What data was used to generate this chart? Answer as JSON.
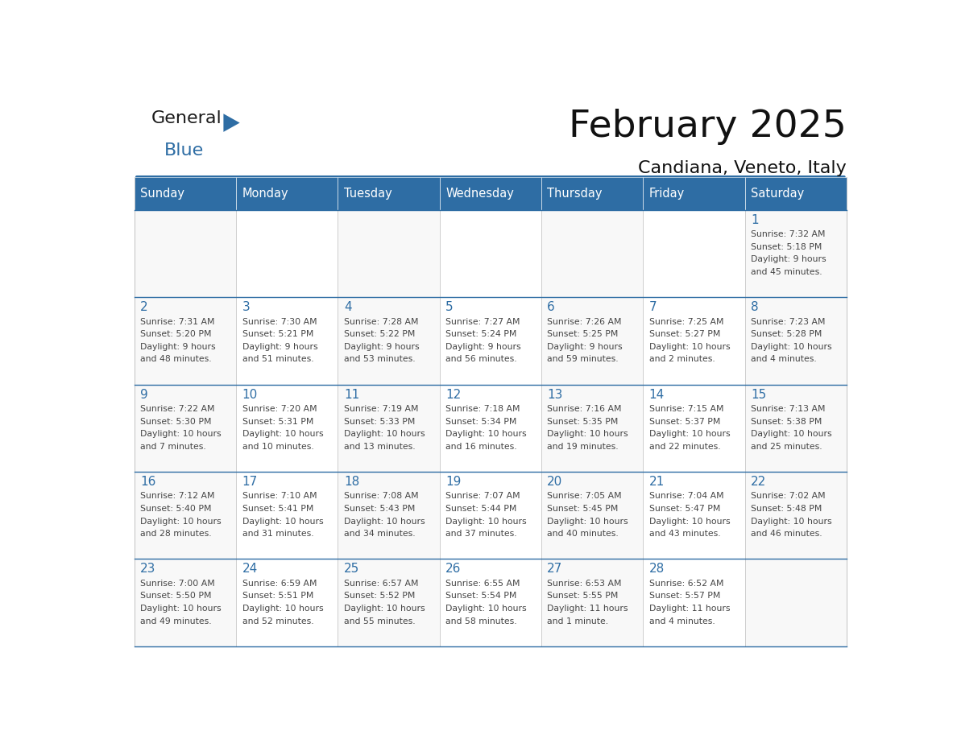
{
  "title": "February 2025",
  "subtitle": "Candiana, Veneto, Italy",
  "header_color": "#2E6DA4",
  "header_text_color": "#FFFFFF",
  "day_number_color": "#2E6DA4",
  "text_color": "#444444",
  "line_color": "#2E6DA4",
  "cell_border_color": "#BBBBBB",
  "days_of_week": [
    "Sunday",
    "Monday",
    "Tuesday",
    "Wednesday",
    "Thursday",
    "Friday",
    "Saturday"
  ],
  "weeks": [
    [
      {
        "day": "",
        "sunrise": "",
        "sunset": "",
        "daylight": ""
      },
      {
        "day": "",
        "sunrise": "",
        "sunset": "",
        "daylight": ""
      },
      {
        "day": "",
        "sunrise": "",
        "sunset": "",
        "daylight": ""
      },
      {
        "day": "",
        "sunrise": "",
        "sunset": "",
        "daylight": ""
      },
      {
        "day": "",
        "sunrise": "",
        "sunset": "",
        "daylight": ""
      },
      {
        "day": "",
        "sunrise": "",
        "sunset": "",
        "daylight": ""
      },
      {
        "day": "1",
        "sunrise": "Sunrise: 7:32 AM",
        "sunset": "Sunset: 5:18 PM",
        "daylight": "Daylight: 9 hours\nand 45 minutes."
      }
    ],
    [
      {
        "day": "2",
        "sunrise": "Sunrise: 7:31 AM",
        "sunset": "Sunset: 5:20 PM",
        "daylight": "Daylight: 9 hours\nand 48 minutes."
      },
      {
        "day": "3",
        "sunrise": "Sunrise: 7:30 AM",
        "sunset": "Sunset: 5:21 PM",
        "daylight": "Daylight: 9 hours\nand 51 minutes."
      },
      {
        "day": "4",
        "sunrise": "Sunrise: 7:28 AM",
        "sunset": "Sunset: 5:22 PM",
        "daylight": "Daylight: 9 hours\nand 53 minutes."
      },
      {
        "day": "5",
        "sunrise": "Sunrise: 7:27 AM",
        "sunset": "Sunset: 5:24 PM",
        "daylight": "Daylight: 9 hours\nand 56 minutes."
      },
      {
        "day": "6",
        "sunrise": "Sunrise: 7:26 AM",
        "sunset": "Sunset: 5:25 PM",
        "daylight": "Daylight: 9 hours\nand 59 minutes."
      },
      {
        "day": "7",
        "sunrise": "Sunrise: 7:25 AM",
        "sunset": "Sunset: 5:27 PM",
        "daylight": "Daylight: 10 hours\nand 2 minutes."
      },
      {
        "day": "8",
        "sunrise": "Sunrise: 7:23 AM",
        "sunset": "Sunset: 5:28 PM",
        "daylight": "Daylight: 10 hours\nand 4 minutes."
      }
    ],
    [
      {
        "day": "9",
        "sunrise": "Sunrise: 7:22 AM",
        "sunset": "Sunset: 5:30 PM",
        "daylight": "Daylight: 10 hours\nand 7 minutes."
      },
      {
        "day": "10",
        "sunrise": "Sunrise: 7:20 AM",
        "sunset": "Sunset: 5:31 PM",
        "daylight": "Daylight: 10 hours\nand 10 minutes."
      },
      {
        "day": "11",
        "sunrise": "Sunrise: 7:19 AM",
        "sunset": "Sunset: 5:33 PM",
        "daylight": "Daylight: 10 hours\nand 13 minutes."
      },
      {
        "day": "12",
        "sunrise": "Sunrise: 7:18 AM",
        "sunset": "Sunset: 5:34 PM",
        "daylight": "Daylight: 10 hours\nand 16 minutes."
      },
      {
        "day": "13",
        "sunrise": "Sunrise: 7:16 AM",
        "sunset": "Sunset: 5:35 PM",
        "daylight": "Daylight: 10 hours\nand 19 minutes."
      },
      {
        "day": "14",
        "sunrise": "Sunrise: 7:15 AM",
        "sunset": "Sunset: 5:37 PM",
        "daylight": "Daylight: 10 hours\nand 22 minutes."
      },
      {
        "day": "15",
        "sunrise": "Sunrise: 7:13 AM",
        "sunset": "Sunset: 5:38 PM",
        "daylight": "Daylight: 10 hours\nand 25 minutes."
      }
    ],
    [
      {
        "day": "16",
        "sunrise": "Sunrise: 7:12 AM",
        "sunset": "Sunset: 5:40 PM",
        "daylight": "Daylight: 10 hours\nand 28 minutes."
      },
      {
        "day": "17",
        "sunrise": "Sunrise: 7:10 AM",
        "sunset": "Sunset: 5:41 PM",
        "daylight": "Daylight: 10 hours\nand 31 minutes."
      },
      {
        "day": "18",
        "sunrise": "Sunrise: 7:08 AM",
        "sunset": "Sunset: 5:43 PM",
        "daylight": "Daylight: 10 hours\nand 34 minutes."
      },
      {
        "day": "19",
        "sunrise": "Sunrise: 7:07 AM",
        "sunset": "Sunset: 5:44 PM",
        "daylight": "Daylight: 10 hours\nand 37 minutes."
      },
      {
        "day": "20",
        "sunrise": "Sunrise: 7:05 AM",
        "sunset": "Sunset: 5:45 PM",
        "daylight": "Daylight: 10 hours\nand 40 minutes."
      },
      {
        "day": "21",
        "sunrise": "Sunrise: 7:04 AM",
        "sunset": "Sunset: 5:47 PM",
        "daylight": "Daylight: 10 hours\nand 43 minutes."
      },
      {
        "day": "22",
        "sunrise": "Sunrise: 7:02 AM",
        "sunset": "Sunset: 5:48 PM",
        "daylight": "Daylight: 10 hours\nand 46 minutes."
      }
    ],
    [
      {
        "day": "23",
        "sunrise": "Sunrise: 7:00 AM",
        "sunset": "Sunset: 5:50 PM",
        "daylight": "Daylight: 10 hours\nand 49 minutes."
      },
      {
        "day": "24",
        "sunrise": "Sunrise: 6:59 AM",
        "sunset": "Sunset: 5:51 PM",
        "daylight": "Daylight: 10 hours\nand 52 minutes."
      },
      {
        "day": "25",
        "sunrise": "Sunrise: 6:57 AM",
        "sunset": "Sunset: 5:52 PM",
        "daylight": "Daylight: 10 hours\nand 55 minutes."
      },
      {
        "day": "26",
        "sunrise": "Sunrise: 6:55 AM",
        "sunset": "Sunset: 5:54 PM",
        "daylight": "Daylight: 10 hours\nand 58 minutes."
      },
      {
        "day": "27",
        "sunrise": "Sunrise: 6:53 AM",
        "sunset": "Sunset: 5:55 PM",
        "daylight": "Daylight: 11 hours\nand 1 minute."
      },
      {
        "day": "28",
        "sunrise": "Sunrise: 6:52 AM",
        "sunset": "Sunset: 5:57 PM",
        "daylight": "Daylight: 11 hours\nand 4 minutes."
      },
      {
        "day": "",
        "sunrise": "",
        "sunset": "",
        "daylight": ""
      }
    ]
  ]
}
